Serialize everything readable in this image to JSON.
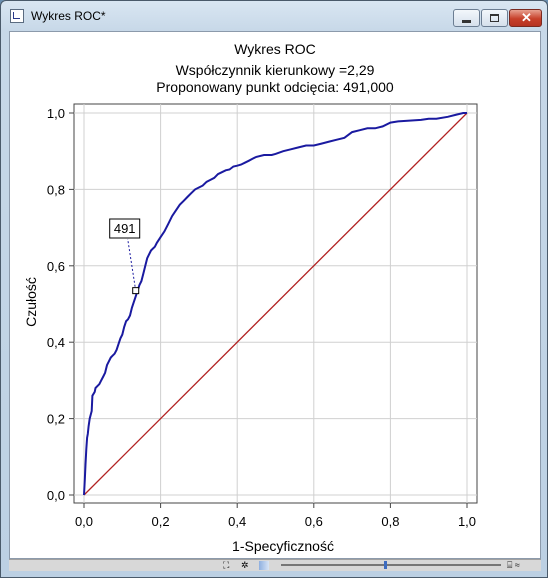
{
  "window": {
    "title": "Wykres ROC*"
  },
  "chart_data": {
    "type": "line",
    "title": "Wykres ROC",
    "subtitle1": "Współczynnik kierunkowy =2,29",
    "subtitle2": "Proponowany punkt odcięcia: 491,000",
    "xlabel": "1-Specyficzność",
    "ylabel": "Czułość",
    "xlim": [
      0,
      1
    ],
    "ylim": [
      0,
      1
    ],
    "xticks": [
      "0,0",
      "0,2",
      "0,4",
      "0,6",
      "0,8",
      "1,0"
    ],
    "yticks": [
      "0,0",
      "0,2",
      "0,4",
      "0,6",
      "0,8",
      "1,0"
    ],
    "grid": true,
    "annotation": {
      "label": "491",
      "x": 0.135,
      "y": 0.535
    },
    "series": [
      {
        "color": "#1a1aa0",
        "x": [
          0,
          0.002,
          0.004,
          0.006,
          0.008,
          0.01,
          0.012,
          0.015,
          0.02,
          0.022,
          0.028,
          0.03,
          0.035,
          0.04,
          0.045,
          0.05,
          0.055,
          0.06,
          0.065,
          0.07,
          0.075,
          0.08,
          0.085,
          0.09,
          0.095,
          0.1,
          0.105,
          0.11,
          0.115,
          0.12,
          0.125,
          0.13,
          0.135,
          0.14,
          0.145,
          0.15,
          0.155,
          0.16,
          0.165,
          0.17,
          0.175,
          0.18,
          0.185,
          0.19,
          0.2,
          0.21,
          0.22,
          0.23,
          0.24,
          0.25,
          0.26,
          0.27,
          0.28,
          0.29,
          0.3,
          0.31,
          0.32,
          0.33,
          0.34,
          0.35,
          0.36,
          0.37,
          0.38,
          0.39,
          0.4,
          0.41,
          0.42,
          0.43,
          0.44,
          0.45,
          0.47,
          0.49,
          0.5,
          0.52,
          0.54,
          0.56,
          0.58,
          0.6,
          0.62,
          0.64,
          0.66,
          0.68,
          0.7,
          0.72,
          0.74,
          0.76,
          0.78,
          0.8,
          0.82,
          0.85,
          0.88,
          0.9,
          0.92,
          0.95,
          0.97,
          0.99,
          1
        ],
        "values": [
          0,
          0.04,
          0.08,
          0.12,
          0.15,
          0.16,
          0.18,
          0.2,
          0.22,
          0.26,
          0.27,
          0.28,
          0.285,
          0.29,
          0.3,
          0.31,
          0.32,
          0.34,
          0.35,
          0.36,
          0.365,
          0.37,
          0.38,
          0.395,
          0.41,
          0.42,
          0.44,
          0.455,
          0.46,
          0.47,
          0.49,
          0.505,
          0.52,
          0.535,
          0.55,
          0.56,
          0.58,
          0.6,
          0.62,
          0.63,
          0.64,
          0.645,
          0.65,
          0.66,
          0.675,
          0.69,
          0.71,
          0.73,
          0.745,
          0.76,
          0.77,
          0.78,
          0.79,
          0.8,
          0.805,
          0.81,
          0.82,
          0.825,
          0.83,
          0.84,
          0.845,
          0.85,
          0.852,
          0.86,
          0.862,
          0.865,
          0.87,
          0.875,
          0.88,
          0.885,
          0.89,
          0.89,
          0.893,
          0.9,
          0.905,
          0.91,
          0.915,
          0.915,
          0.92,
          0.925,
          0.93,
          0.935,
          0.95,
          0.955,
          0.96,
          0.96,
          0.965,
          0.975,
          0.978,
          0.98,
          0.982,
          0.985,
          0.985,
          0.99,
          0.995,
          1,
          1
        ]
      },
      {
        "color": "#b22222",
        "x": [
          0,
          1
        ],
        "values": [
          0,
          1
        ]
      }
    ]
  }
}
